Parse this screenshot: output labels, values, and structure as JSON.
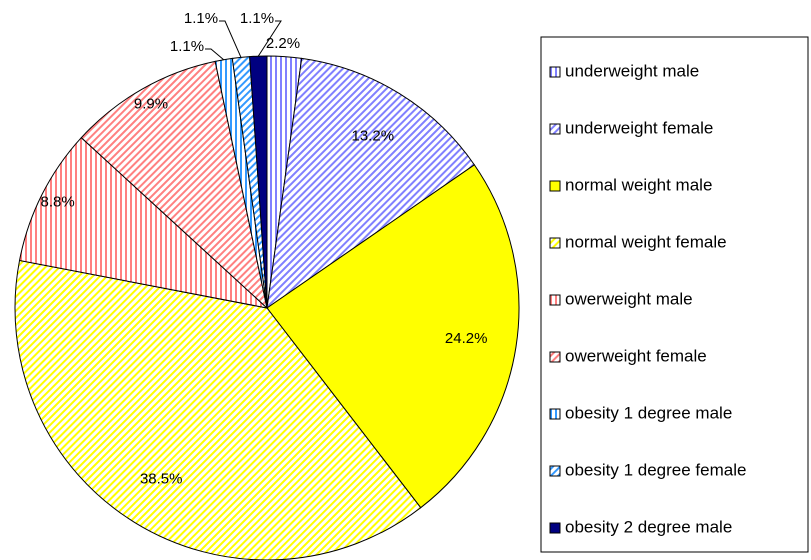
{
  "chart_data": {
    "type": "pie",
    "categories": [
      "underweight male",
      "underweight female",
      "normal weight male",
      "normal weight female",
      "owerweight male",
      "owerweight female",
      "obesity 1 degree male",
      "obesity 1 degree female",
      "obesity 2 degree male"
    ],
    "values": [
      2.2,
      13.2,
      24.2,
      38.5,
      8.8,
      9.9,
      1.1,
      1.1,
      1.1
    ],
    "value_labels": [
      "2.2%",
      "13.2%",
      "24.2%",
      "38.5%",
      "8.8%",
      "9.9%",
      "1.1%",
      "1.1%",
      "1.1%"
    ],
    "colors": [
      "#8080ff",
      "#8080ff",
      "#ffff00",
      "#ffff00",
      "#ff8080",
      "#ff8080",
      "#3399ff",
      "#3399ff",
      "#000080"
    ],
    "hatches": [
      "vertical",
      "diagonal",
      "solid",
      "diagonal",
      "vertical",
      "diagonal",
      "vertical",
      "diagonal",
      "solid"
    ],
    "legend": "right"
  }
}
